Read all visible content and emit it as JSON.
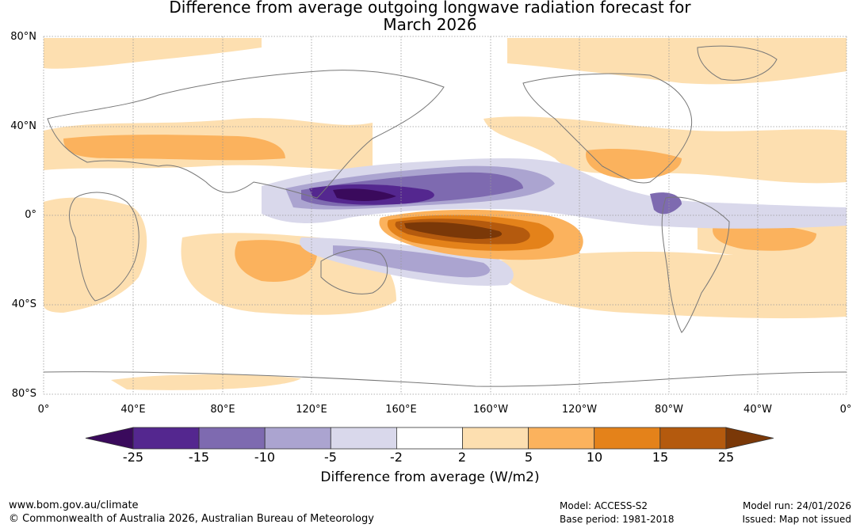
{
  "title": {
    "line1": "Difference from average outgoing longwave radiation forecast for",
    "line2": "March 2026"
  },
  "map": {
    "lat_labels": [
      "80°N",
      "40°N",
      "0°",
      "40°S",
      "80°S"
    ],
    "lon_labels": [
      "0°",
      "40°E",
      "80°E",
      "120°E",
      "160°E",
      "160°W",
      "120°W",
      "80°W",
      "40°W",
      "0°"
    ],
    "colors": {
      "ocean": "#ffffff",
      "coast": "#777777",
      "grid": "#999999"
    }
  },
  "colorbar": {
    "ticks": [
      "-25",
      "-15",
      "-10",
      "-5",
      "-2",
      "2",
      "5",
      "10",
      "15",
      "25"
    ],
    "title": "Difference from average (W/m2)",
    "colors": [
      "#3a0a5c",
      "#54278f",
      "#7e6ab0",
      "#aba4d0",
      "#d9d8eb",
      "#ffffff",
      "#fddfb0",
      "#fbb25d",
      "#e4821a",
      "#b45a0e",
      "#7a3808"
    ]
  },
  "footer": {
    "website": "www.bom.gov.au/climate",
    "copyright": "© Commonwealth of Australia 2026, Australian Bureau of Meteorology",
    "model": "Model: ACCESS-S2",
    "base_period": "Base period: 1981-2018",
    "model_run": "Model run: 24/01/2026",
    "issued": "Issued: Map not issued"
  }
}
